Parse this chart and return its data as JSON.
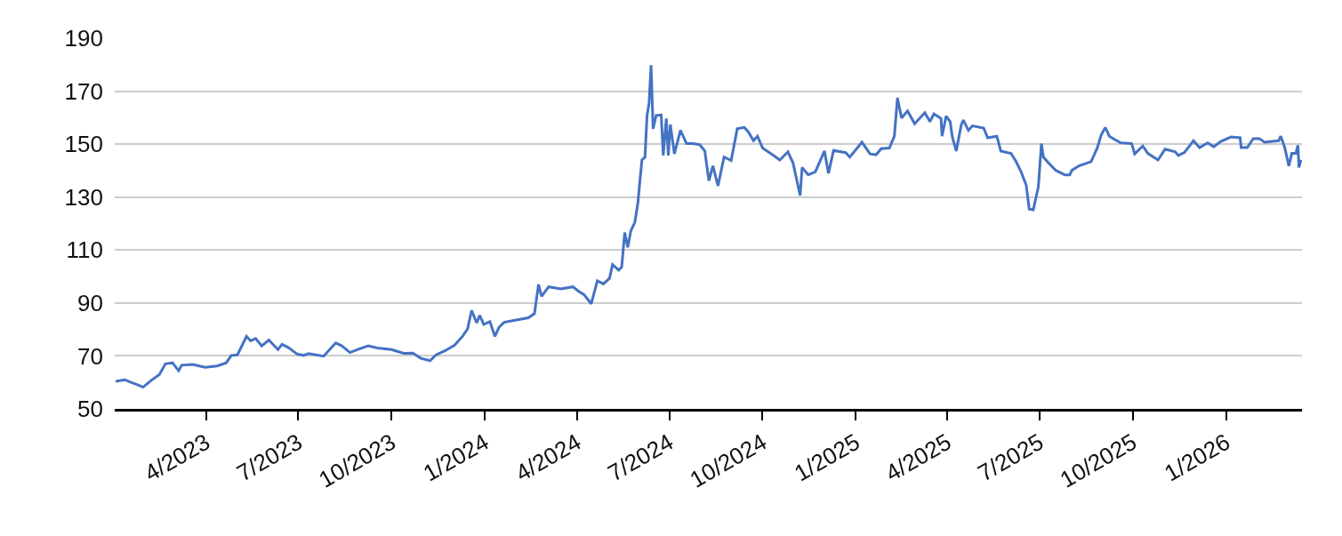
{
  "chart_data": {
    "type": "line",
    "xlim": [
      "2023-01-01",
      "2026-03-17"
    ],
    "ylim": [
      50,
      190
    ],
    "yticks": [
      50,
      70,
      90,
      110,
      130,
      150,
      170,
      190
    ],
    "xticks": [
      {
        "value": "2023-04-01",
        "label": "4/2023"
      },
      {
        "value": "2023-07-01",
        "label": "7/2023"
      },
      {
        "value": "2023-10-01",
        "label": "10/2023"
      },
      {
        "value": "2024-01-01",
        "label": "1/2024"
      },
      {
        "value": "2024-04-01",
        "label": "4/2024"
      },
      {
        "value": "2024-07-01",
        "label": "7/2024"
      },
      {
        "value": "2024-10-01",
        "label": "10/2024"
      },
      {
        "value": "2025-01-01",
        "label": "1/2025"
      },
      {
        "value": "2025-04-01",
        "label": "4/2025"
      },
      {
        "value": "2025-07-01",
        "label": "7/2025"
      },
      {
        "value": "2025-10-01",
        "label": "10/2025"
      },
      {
        "value": "2026-01-01",
        "label": "1/2026"
      }
    ],
    "grid": "y",
    "marker": "none",
    "line_style": "solid",
    "x": [
      "2023-01-02",
      "2023-01-11",
      "2023-01-17",
      "2023-01-23",
      "2023-01-29",
      "2023-02-06",
      "2023-02-14",
      "2023-02-20",
      "2023-02-27",
      "2023-03-05",
      "2023-03-08",
      "2023-03-19",
      "2023-03-31",
      "2023-04-12",
      "2023-04-21",
      "2023-04-26",
      "2023-05-02",
      "2023-05-11",
      "2023-05-15",
      "2023-05-20",
      "2023-05-26",
      "2023-06-02",
      "2023-06-11",
      "2023-06-15",
      "2023-06-21",
      "2023-06-30",
      "2023-07-06",
      "2023-07-11",
      "2023-07-26",
      "2023-08-07",
      "2023-08-13",
      "2023-08-21",
      "2023-08-30",
      "2023-09-08",
      "2023-09-17",
      "2023-10-01",
      "2023-10-13",
      "2023-10-22",
      "2023-10-30",
      "2023-11-08",
      "2023-11-14",
      "2023-11-23",
      "2023-12-02",
      "2023-12-10",
      "2023-12-15",
      "2023-12-19",
      "2023-12-24",
      "2023-12-27",
      "2023-12-31",
      "2024-01-06",
      "2024-01-11",
      "2024-01-15",
      "2024-01-20",
      "2024-02-01",
      "2024-02-13",
      "2024-02-19",
      "2024-02-23",
      "2024-02-26",
      "2024-03-04",
      "2024-03-16",
      "2024-03-28",
      "2024-04-02",
      "2024-04-08",
      "2024-04-15",
      "2024-04-21",
      "2024-04-27",
      "2024-05-03",
      "2024-05-06",
      "2024-05-12",
      "2024-05-15",
      "2024-05-18",
      "2024-05-21",
      "2024-05-24",
      "2024-05-28",
      "2024-05-31",
      "2024-06-02",
      "2024-06-04",
      "2024-06-07",
      "2024-06-09",
      "2024-06-11",
      "2024-06-13",
      "2024-06-15",
      "2024-06-18",
      "2024-06-23",
      "2024-06-25",
      "2024-06-28",
      "2024-06-30",
      "2024-07-02",
      "2024-07-06",
      "2024-07-12",
      "2024-07-18",
      "2024-07-24",
      "2024-07-31",
      "2024-08-05",
      "2024-08-09",
      "2024-08-13",
      "2024-08-18",
      "2024-08-24",
      "2024-08-31",
      "2024-09-06",
      "2024-09-13",
      "2024-09-17",
      "2024-09-22",
      "2024-09-26",
      "2024-10-01",
      "2024-10-12",
      "2024-10-18",
      "2024-10-26",
      "2024-10-31",
      "2024-11-07",
      "2024-11-09",
      "2024-11-15",
      "2024-11-22",
      "2024-12-01",
      "2024-12-05",
      "2024-12-10",
      "2024-12-22",
      "2024-12-26",
      "2025-01-07",
      "2025-01-15",
      "2025-01-21",
      "2025-01-26",
      "2025-02-03",
      "2025-02-08",
      "2025-02-11",
      "2025-02-15",
      "2025-02-21",
      "2025-02-28",
      "2025-03-10",
      "2025-03-15",
      "2025-03-19",
      "2025-03-26",
      "2025-03-27",
      "2025-03-31",
      "2025-04-04",
      "2025-04-06",
      "2025-04-10",
      "2025-04-15",
      "2025-04-17",
      "2025-04-22",
      "2025-04-26",
      "2025-05-07",
      "2025-05-11",
      "2025-05-20",
      "2025-05-24",
      "2025-06-03",
      "2025-06-08",
      "2025-06-13",
      "2025-06-18",
      "2025-06-21",
      "2025-06-25",
      "2025-06-30",
      "2025-07-03",
      "2025-07-05",
      "2025-07-10",
      "2025-07-17",
      "2025-07-26",
      "2025-07-31",
      "2025-08-02",
      "2025-08-09",
      "2025-08-21",
      "2025-08-27",
      "2025-08-31",
      "2025-09-04",
      "2025-09-08",
      "2025-09-13",
      "2025-09-19",
      "2025-09-30",
      "2025-10-03",
      "2025-10-11",
      "2025-10-16",
      "2025-10-26",
      "2025-11-02",
      "2025-11-12",
      "2025-11-15",
      "2025-11-21",
      "2025-11-30",
      "2025-12-06",
      "2025-12-14",
      "2025-12-20",
      "2025-12-27",
      "2026-01-06",
      "2026-01-15",
      "2026-01-16",
      "2026-01-22",
      "2026-01-28",
      "2026-02-03",
      "2026-02-08",
      "2026-02-22",
      "2026-02-24",
      "2026-02-28",
      "2026-03-04",
      "2026-03-07",
      "2026-03-11",
      "2026-03-13",
      "2026-03-14",
      "2026-03-16"
    ],
    "series": [
      {
        "color": "#4472c4",
        "values": [
          60.4,
          61,
          60,
          59.2,
          58.2,
          60.8,
          62.9,
          67,
          67.4,
          64.4,
          66.5,
          66.8,
          65.7,
          66.2,
          67.4,
          70.2,
          70.4,
          77.4,
          75.7,
          76.6,
          73.8,
          76,
          72.4,
          74.4,
          73.2,
          70.7,
          70.2,
          70.9,
          69.9,
          74.9,
          73.8,
          71.3,
          72.6,
          73.8,
          73,
          72.4,
          71,
          71.1,
          69.1,
          68.2,
          70.4,
          72,
          74,
          77.4,
          80.2,
          87.2,
          82.5,
          85.3,
          81.9,
          83,
          77.4,
          80.8,
          82.7,
          83.6,
          84.4,
          86,
          97,
          92.5,
          96.1,
          95.3,
          96.1,
          94.6,
          93.1,
          89.7,
          98.4,
          97.2,
          99.3,
          104.5,
          102.4,
          103.5,
          116.6,
          111,
          117.2,
          120.5,
          127.8,
          136.2,
          144,
          145.1,
          160.8,
          165.3,
          179.8,
          155.8,
          160.8,
          161,
          145.7,
          159.7,
          145.7,
          157.4,
          146.3,
          155.2,
          150.2,
          150.2,
          149.8,
          147.4,
          136.2,
          141.8,
          134.2,
          145.1,
          143.8,
          155.8,
          156.3,
          154.6,
          151.3,
          153,
          148.5,
          145.7,
          144,
          147.1,
          142.9,
          130.6,
          141.2,
          138.4,
          139.5,
          147.4,
          139,
          147.6,
          146.8,
          145.1,
          150.7,
          146.3,
          146,
          148.3,
          148.5,
          153,
          167.5,
          159.9,
          162.5,
          157.7,
          161.9,
          158.5,
          161.4,
          159.7,
          153,
          160.6,
          158.5,
          153,
          147.4,
          157.4,
          159.1,
          155.2,
          156.9,
          156.1,
          152.4,
          153,
          147.4,
          146.5,
          143.4,
          139.5,
          134.5,
          125.5,
          125.2,
          133.9,
          150.2,
          145.1,
          142.9,
          140.1,
          138.4,
          138.4,
          140.1,
          141.8,
          143.4,
          148.5,
          153.5,
          156.3,
          153,
          151.8,
          150.5,
          150.2,
          146.3,
          149.3,
          146.5,
          144,
          148.1,
          147.1,
          145.7,
          146.8,
          151.3,
          148.7,
          150.5,
          149,
          151,
          152.7,
          152.4,
          148.7,
          148.7,
          152.1,
          152.1,
          150.7,
          151.3,
          153,
          148.7,
          141.8,
          146.5,
          146.5,
          149.6,
          141.2,
          144
        ]
      }
    ]
  }
}
